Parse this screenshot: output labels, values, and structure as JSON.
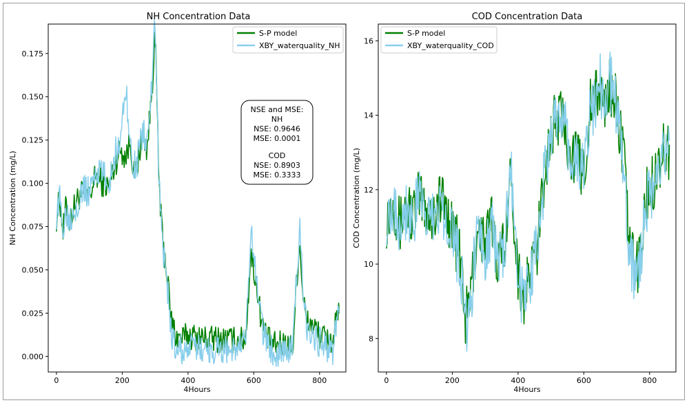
{
  "chart_data": [
    {
      "type": "line",
      "title": "NH Concentration Data",
      "xlabel": "4Hours",
      "ylabel": "NH Concentration (mg/L)",
      "xlim": [
        -25,
        880
      ],
      "ylim": [
        -0.009,
        0.192
      ],
      "xticks": [
        0,
        200,
        400,
        600,
        800
      ],
      "yticks": [
        0.0,
        0.025,
        0.05,
        0.075,
        0.1,
        0.125,
        0.15,
        0.175
      ],
      "ytick_labels": [
        "0.000",
        "0.025",
        "0.050",
        "0.075",
        "0.100",
        "0.125",
        "0.150",
        "0.175"
      ],
      "legend_position": "upper right",
      "series": [
        {
          "name": "S-P model",
          "color": "#008000",
          "anchors": [
            [
              0,
              0.08
            ],
            [
              10,
              0.092
            ],
            [
              20,
              0.072
            ],
            [
              30,
              0.088
            ],
            [
              40,
              0.078
            ],
            [
              60,
              0.09
            ],
            [
              80,
              0.095
            ],
            [
              100,
              0.092
            ],
            [
              120,
              0.105
            ],
            [
              140,
              0.1
            ],
            [
              160,
              0.098
            ],
            [
              180,
              0.112
            ],
            [
              195,
              0.12
            ],
            [
              210,
              0.115
            ],
            [
              225,
              0.125
            ],
            [
              235,
              0.105
            ],
            [
              245,
              0.108
            ],
            [
              255,
              0.122
            ],
            [
              265,
              0.128
            ],
            [
              275,
              0.12
            ],
            [
              285,
              0.14
            ],
            [
              292,
              0.16
            ],
            [
              298,
              0.182
            ],
            [
              303,
              0.17
            ],
            [
              310,
              0.11
            ],
            [
              318,
              0.08
            ],
            [
              325,
              0.062
            ],
            [
              332,
              0.055
            ],
            [
              340,
              0.04
            ],
            [
              348,
              0.022
            ],
            [
              355,
              0.018
            ],
            [
              362,
              0.012
            ],
            [
              380,
              0.01
            ],
            [
              400,
              0.012
            ],
            [
              430,
              0.011
            ],
            [
              460,
              0.01
            ],
            [
              490,
              0.01
            ],
            [
              520,
              0.01
            ],
            [
              550,
              0.009
            ],
            [
              575,
              0.01
            ],
            [
              585,
              0.04
            ],
            [
              590,
              0.06
            ],
            [
              600,
              0.05
            ],
            [
              610,
              0.04
            ],
            [
              620,
              0.025
            ],
            [
              630,
              0.015
            ],
            [
              650,
              0.008
            ],
            [
              670,
              0.006
            ],
            [
              690,
              0.008
            ],
            [
              710,
              0.005
            ],
            [
              720,
              0.008
            ],
            [
              730,
              0.045
            ],
            [
              740,
              0.065
            ],
            [
              750,
              0.035
            ],
            [
              760,
              0.02
            ],
            [
              780,
              0.018
            ],
            [
              800,
              0.012
            ],
            [
              820,
              0.01
            ],
            [
              840,
              0.008
            ],
            [
              850,
              0.02
            ],
            [
              860,
              0.024
            ]
          ],
          "noise": 0.008
        },
        {
          "name": "XBY_waterquality_NH",
          "color": "#87ceeb",
          "anchors": [
            [
              0,
              0.082
            ],
            [
              10,
              0.09
            ],
            [
              20,
              0.075
            ],
            [
              30,
              0.085
            ],
            [
              40,
              0.08
            ],
            [
              60,
              0.088
            ],
            [
              80,
              0.096
            ],
            [
              100,
              0.095
            ],
            [
              120,
              0.108
            ],
            [
              140,
              0.105
            ],
            [
              160,
              0.1
            ],
            [
              180,
              0.118
            ],
            [
              195,
              0.125
            ],
            [
              205,
              0.145
            ],
            [
              212,
              0.158
            ],
            [
              220,
              0.128
            ],
            [
              235,
              0.11
            ],
            [
              245,
              0.11
            ],
            [
              255,
              0.125
            ],
            [
              265,
              0.13
            ],
            [
              275,
              0.122
            ],
            [
              285,
              0.142
            ],
            [
              292,
              0.165
            ],
            [
              298,
              0.186
            ],
            [
              303,
              0.168
            ],
            [
              310,
              0.112
            ],
            [
              318,
              0.078
            ],
            [
              325,
              0.06
            ],
            [
              332,
              0.05
            ],
            [
              340,
              0.035
            ],
            [
              348,
              0.015
            ],
            [
              355,
              0.008
            ],
            [
              362,
              0.005
            ],
            [
              380,
              0.004
            ],
            [
              400,
              0.004
            ],
            [
              430,
              0.005
            ],
            [
              460,
              0.004
            ],
            [
              490,
              0.004
            ],
            [
              520,
              0.004
            ],
            [
              550,
              0.004
            ],
            [
              575,
              0.008
            ],
            [
              585,
              0.045
            ],
            [
              592,
              0.072
            ],
            [
              600,
              0.055
            ],
            [
              610,
              0.042
            ],
            [
              620,
              0.028
            ],
            [
              630,
              0.012
            ],
            [
              650,
              0.004
            ],
            [
              670,
              0.003
            ],
            [
              690,
              0.004
            ],
            [
              710,
              0.003
            ],
            [
              720,
              0.006
            ],
            [
              730,
              0.048
            ],
            [
              740,
              0.072
            ],
            [
              750,
              0.038
            ],
            [
              760,
              0.018
            ],
            [
              780,
              0.014
            ],
            [
              800,
              0.008
            ],
            [
              820,
              0.006
            ],
            [
              840,
              0.004
            ],
            [
              850,
              0.018
            ],
            [
              860,
              0.022
            ]
          ],
          "noise": 0.009
        }
      ]
    },
    {
      "type": "line",
      "title": "COD Concentration Data",
      "xlabel": "4Hours",
      "ylabel": "COD Concentration (mg/L)",
      "xlim": [
        -25,
        880
      ],
      "ylim": [
        7.1,
        16.45
      ],
      "xticks": [
        0,
        200,
        400,
        600,
        800
      ],
      "yticks": [
        8,
        10,
        12,
        14,
        16
      ],
      "ytick_labels": [
        "8",
        "10",
        "12",
        "14",
        "16"
      ],
      "legend_position": "upper left",
      "series": [
        {
          "name": "S-P model",
          "color": "#008000",
          "anchors": [
            [
              0,
              11.2
            ],
            [
              20,
              11.8
            ],
            [
              40,
              11.0
            ],
            [
              60,
              11.6
            ],
            [
              80,
              11.3
            ],
            [
              100,
              11.8
            ],
            [
              120,
              11.5
            ],
            [
              140,
              11.2
            ],
            [
              160,
              11.8
            ],
            [
              180,
              11.5
            ],
            [
              200,
              11.0
            ],
            [
              215,
              10.5
            ],
            [
              230,
              9.8
            ],
            [
              240,
              8.5
            ],
            [
              250,
              8.8
            ],
            [
              260,
              9.5
            ],
            [
              270,
              10.5
            ],
            [
              280,
              11.0
            ],
            [
              300,
              10.5
            ],
            [
              320,
              11.2
            ],
            [
              340,
              10.0
            ],
            [
              360,
              10.8
            ],
            [
              380,
              12.5
            ],
            [
              390,
              11.0
            ],
            [
              400,
              9.8
            ],
            [
              420,
              9.0
            ],
            [
              440,
              10.0
            ],
            [
              460,
              10.5
            ],
            [
              480,
              12.5
            ],
            [
              500,
              13.5
            ],
            [
              520,
              14.0
            ],
            [
              540,
              13.8
            ],
            [
              560,
              13.0
            ],
            [
              580,
              12.8
            ],
            [
              600,
              12.5
            ],
            [
              620,
              14.2
            ],
            [
              640,
              14.5
            ],
            [
              650,
              14.8
            ],
            [
              660,
              14.2
            ],
            [
              680,
              14.8
            ],
            [
              700,
              14.2
            ],
            [
              720,
              13.0
            ],
            [
              735,
              11.0
            ],
            [
              745,
              10.2
            ],
            [
              760,
              9.8
            ],
            [
              775,
              10.5
            ],
            [
              790,
              11.8
            ],
            [
              810,
              12.2
            ],
            [
              830,
              12.8
            ],
            [
              850,
              13.2
            ],
            [
              860,
              13.0
            ]
          ],
          "noise": 0.8
        },
        {
          "name": "XBY_waterquality_COD",
          "color": "#87ceeb",
          "anchors": [
            [
              0,
              11.3
            ],
            [
              20,
              11.7
            ],
            [
              40,
              11.1
            ],
            [
              60,
              11.5
            ],
            [
              80,
              11.2
            ],
            [
              100,
              11.7
            ],
            [
              120,
              11.4
            ],
            [
              140,
              11.1
            ],
            [
              160,
              11.7
            ],
            [
              180,
              11.4
            ],
            [
              200,
              10.9
            ],
            [
              215,
              10.3
            ],
            [
              230,
              9.6
            ],
            [
              240,
              8.2
            ],
            [
              250,
              8.6
            ],
            [
              260,
              9.3
            ],
            [
              270,
              10.3
            ],
            [
              280,
              10.9
            ],
            [
              300,
              10.4
            ],
            [
              320,
              11.1
            ],
            [
              340,
              9.9
            ],
            [
              360,
              10.7
            ],
            [
              380,
              12.4
            ],
            [
              390,
              10.8
            ],
            [
              400,
              9.6
            ],
            [
              420,
              8.8
            ],
            [
              440,
              9.9
            ],
            [
              460,
              10.4
            ],
            [
              480,
              12.4
            ],
            [
              500,
              13.4
            ],
            [
              520,
              13.9
            ],
            [
              540,
              13.7
            ],
            [
              560,
              12.9
            ],
            [
              580,
              12.7
            ],
            [
              600,
              12.4
            ],
            [
              620,
              14.1
            ],
            [
              640,
              14.6
            ],
            [
              650,
              15.0
            ],
            [
              660,
              14.3
            ],
            [
              680,
              14.9
            ],
            [
              700,
              14.1
            ],
            [
              720,
              12.8
            ],
            [
              735,
              10.8
            ],
            [
              745,
              10.0
            ],
            [
              760,
              9.6
            ],
            [
              775,
              10.3
            ],
            [
              790,
              11.6
            ],
            [
              810,
              12.0
            ],
            [
              830,
              12.6
            ],
            [
              850,
              13.1
            ],
            [
              860,
              12.9
            ]
          ],
          "noise": 0.85
        }
      ]
    }
  ],
  "annotation": {
    "lines": [
      "NSE and MSE:",
      "NH",
      "NSE: 0.9646",
      "MSE: 0.0001",
      "",
      "COD",
      "NSE: 0.8903",
      "MSE: 0.3333"
    ]
  }
}
